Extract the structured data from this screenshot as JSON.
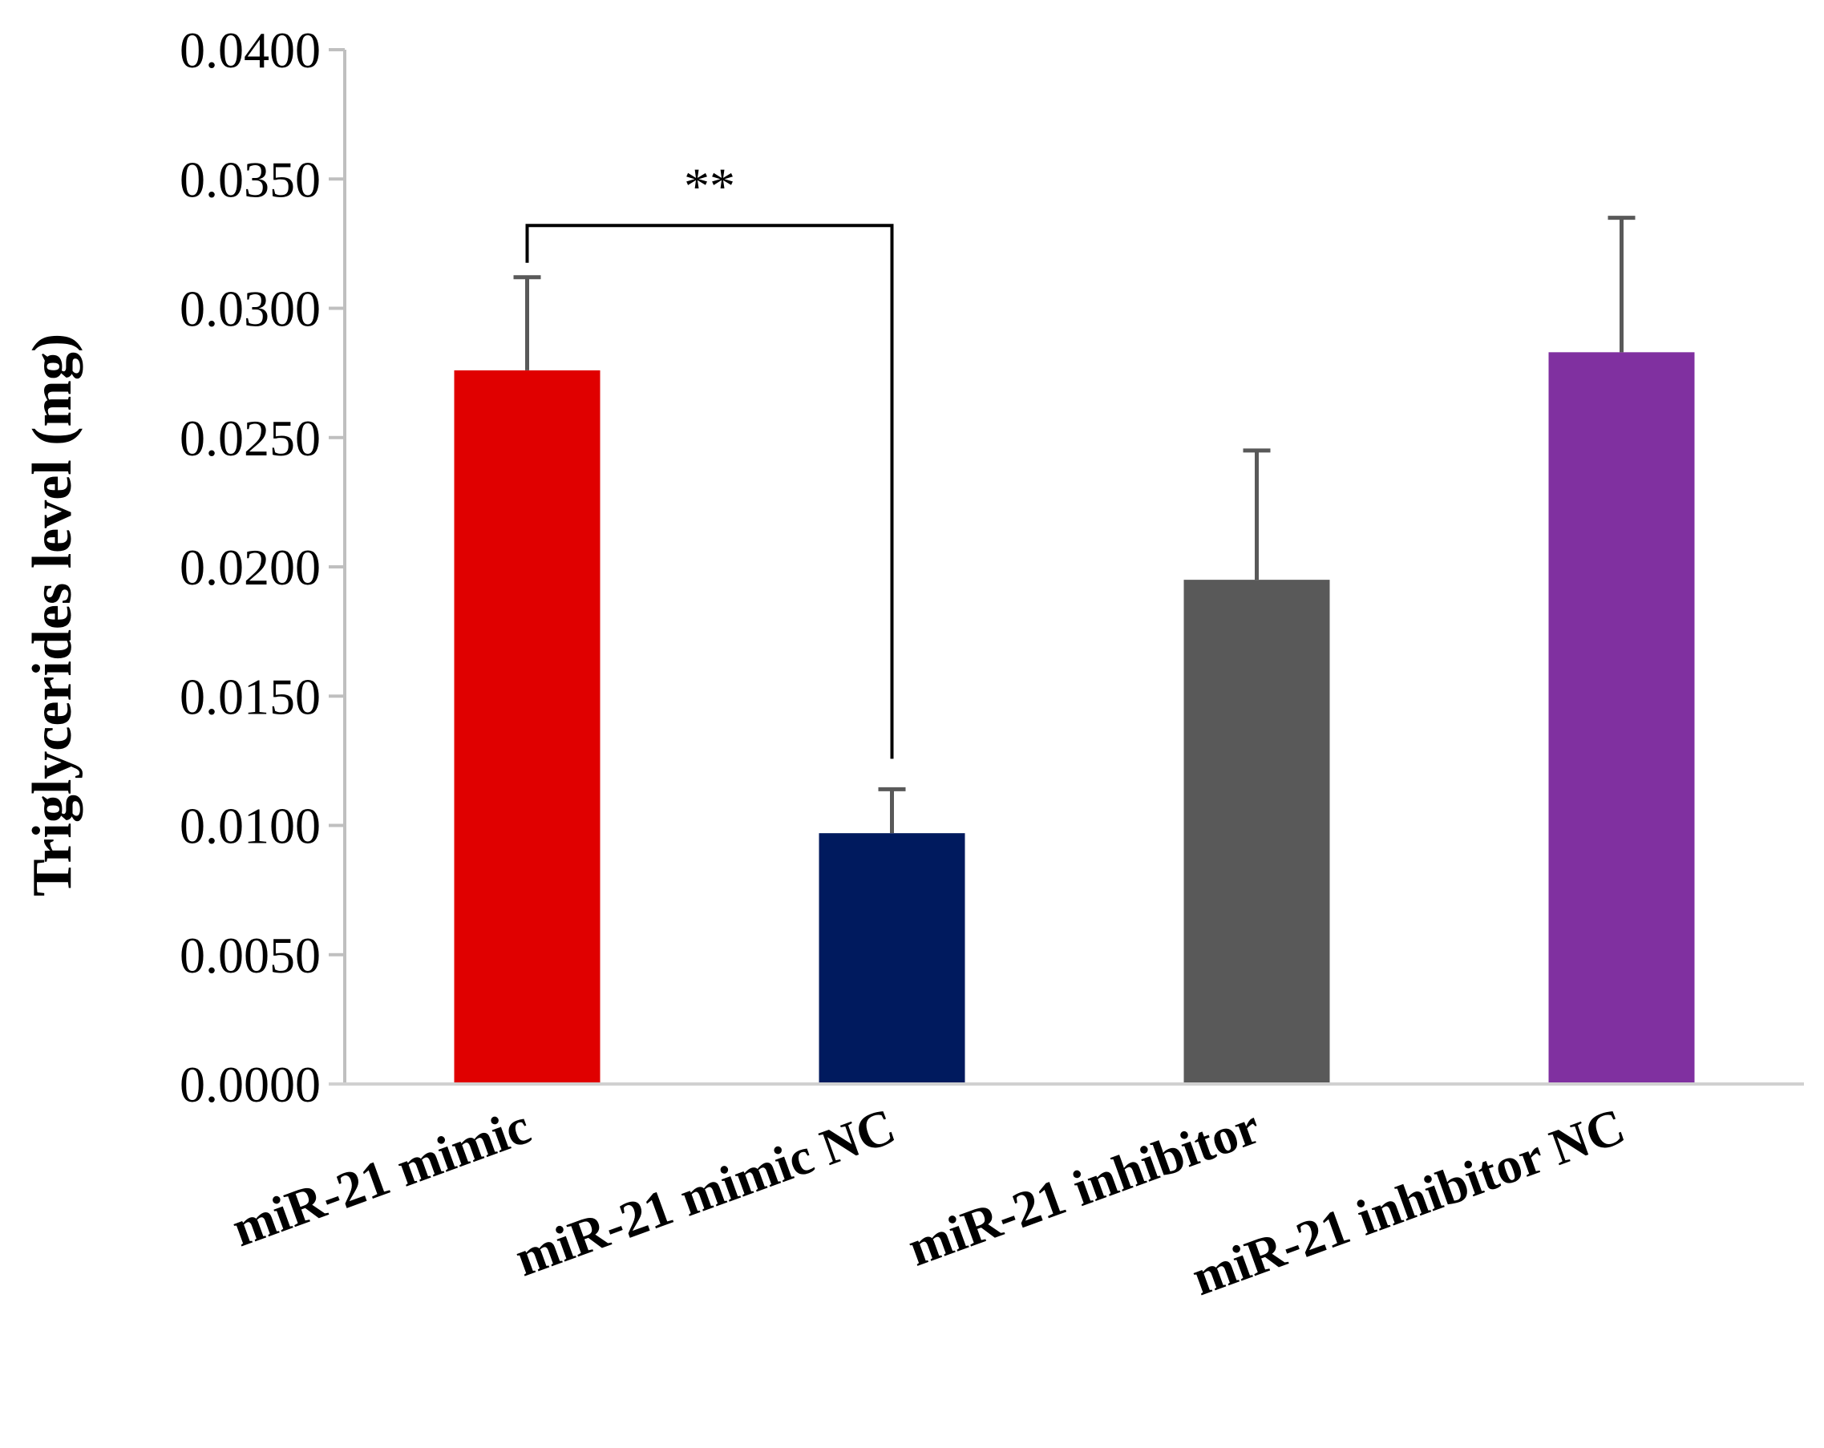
{
  "chart_data": {
    "type": "bar",
    "title": "",
    "xlabel": "",
    "ylabel": "Triglycerides level (mg)",
    "ylim": [
      0,
      0.04
    ],
    "yticks": [
      "0.0000",
      "0.0050",
      "0.0100",
      "0.0150",
      "0.0200",
      "0.0250",
      "0.0300",
      "0.0350",
      "0.0400"
    ],
    "categories": [
      "miR-21 mimic",
      "miR-21 mimic NC",
      "miR-21 inhibitor",
      "miR-21 inhibitor NC"
    ],
    "values": [
      0.0276,
      0.0097,
      0.0195,
      0.0283
    ],
    "errors": [
      0.0036,
      0.0017,
      0.005,
      0.0052
    ],
    "colors": [
      "#e00000",
      "#001a5e",
      "#595959",
      "#8030a0"
    ],
    "significance": {
      "label": "**",
      "from_category": "miR-21 mimic",
      "to_category": "miR-21 mimic NC",
      "bracket_value": 0.0332
    },
    "grid": false,
    "legend": "none"
  }
}
